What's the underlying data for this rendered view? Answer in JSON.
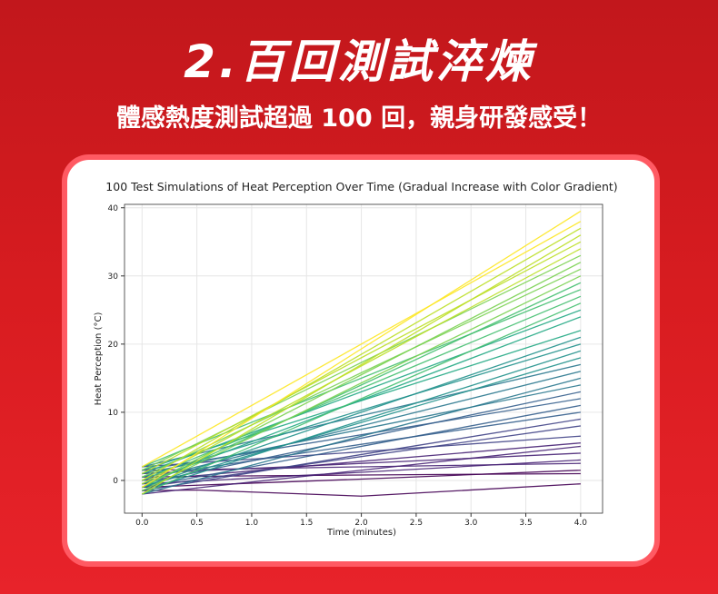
{
  "header": {
    "title": "2.百回測試淬煉",
    "subtitle": "體感熱度測試超過 100 回，親身研發感受！"
  },
  "chart_data": {
    "type": "line",
    "title": "100 Test Simulations of Heat Perception Over Time (Gradual Increase with Color Gradient)",
    "xlabel": "Time (minutes)",
    "ylabel": "Heat Perception (°C)",
    "x": [
      0,
      0.5,
      2,
      4
    ],
    "xlim": [
      -0.16,
      4.2
    ],
    "ylim": [
      -4.8,
      40.5
    ],
    "xticks": [
      {
        "value": 0,
        "label": "0.0"
      },
      {
        "value": 0.5,
        "label": "0.5"
      },
      {
        "value": 1,
        "label": "1.0"
      },
      {
        "value": 1.5,
        "label": "1.5"
      },
      {
        "value": 2,
        "label": "2.0"
      },
      {
        "value": 2.5,
        "label": "2.5"
      },
      {
        "value": 3,
        "label": "3.0"
      },
      {
        "value": 3.5,
        "label": "3.5"
      },
      {
        "value": 4,
        "label": "4.0"
      }
    ],
    "yticks": [
      0,
      10,
      20,
      30,
      40
    ],
    "grid": true,
    "series": [
      {
        "color": "#440154",
        "values": [
          -1.5,
          -1.4,
          -2.3,
          -0.5
        ]
      },
      {
        "color": "#440154",
        "values": [
          0.5,
          0.6,
          0.8,
          1
        ]
      },
      {
        "color": "#440154",
        "values": [
          -1,
          -0.7,
          0.2,
          1.5
        ]
      },
      {
        "color": "#482475",
        "values": [
          1.5,
          1.6,
          2,
          2.5
        ]
      },
      {
        "color": "#482475",
        "values": [
          -0.5,
          -0.1,
          1.2,
          3
        ]
      },
      {
        "color": "#482475",
        "values": [
          1,
          1.4,
          2.5,
          4
        ]
      },
      {
        "color": "#482475",
        "values": [
          -2,
          -1.1,
          1.5,
          5
        ]
      },
      {
        "color": "#482475",
        "values": [
          0,
          0.7,
          2.8,
          5.5
        ]
      },
      {
        "color": "#414487",
        "values": [
          2,
          2.6,
          4.2,
          6.5
        ]
      },
      {
        "color": "#414487",
        "values": [
          -1,
          0.1,
          3.5,
          8
        ]
      },
      {
        "color": "#414487",
        "values": [
          -1.5,
          -0.2,
          3.8,
          9
        ]
      },
      {
        "color": "#355f8d",
        "values": [
          0.5,
          1.7,
          5.3,
          10
        ]
      },
      {
        "color": "#355f8d",
        "values": [
          -1,
          0.5,
          5,
          11
        ]
      },
      {
        "color": "#355f8d",
        "values": [
          1.5,
          2.8,
          6.7,
          12
        ]
      },
      {
        "color": "#355f8d",
        "values": [
          -0.5,
          1.2,
          6.2,
          13
        ]
      },
      {
        "color": "#2a788e",
        "values": [
          1,
          2.6,
          7.5,
          14
        ]
      },
      {
        "color": "#2a788e",
        "values": [
          -2,
          0.1,
          6.5,
          15
        ]
      },
      {
        "color": "#2a788e",
        "values": [
          0,
          2,
          8,
          16
        ]
      },
      {
        "color": "#2a788e",
        "values": [
          2,
          3.9,
          9.5,
          17
        ]
      },
      {
        "color": "#21918c",
        "values": [
          -1,
          1.4,
          8.5,
          18
        ]
      },
      {
        "color": "#21918c",
        "values": [
          -1.5,
          1,
          8.8,
          19
        ]
      },
      {
        "color": "#21918c",
        "values": [
          0.5,
          2.9,
          10.3,
          20
        ]
      },
      {
        "color": "#21918c",
        "values": [
          -1,
          1.8,
          10,
          21
        ]
      },
      {
        "color": "#22a884",
        "values": [
          1.5,
          4.1,
          11.7,
          22
        ]
      },
      {
        "color": "#22a884",
        "values": [
          -0.5,
          2.6,
          11.8,
          24
        ]
      },
      {
        "color": "#22a884",
        "values": [
          1,
          4,
          13,
          25
        ]
      },
      {
        "color": "#44bf70",
        "values": [
          -2,
          1.5,
          12,
          26
        ]
      },
      {
        "color": "#44bf70",
        "values": [
          0,
          3.4,
          13.5,
          27
        ]
      },
      {
        "color": "#44bf70",
        "values": [
          2,
          5.3,
          15,
          28
        ]
      },
      {
        "color": "#44bf70",
        "values": [
          -1,
          2.8,
          14,
          29
        ]
      },
      {
        "color": "#7ad151",
        "values": [
          -1.5,
          2.4,
          14.3,
          30
        ]
      },
      {
        "color": "#7ad151",
        "values": [
          0.5,
          4.3,
          15.8,
          31
        ]
      },
      {
        "color": "#7ad151",
        "values": [
          -1,
          3.1,
          15.5,
          32
        ]
      },
      {
        "color": "#7ad151",
        "values": [
          1.5,
          5.4,
          17.3,
          33
        ]
      },
      {
        "color": "#bddf26",
        "values": [
          -0.5,
          3.8,
          16.8,
          34
        ]
      },
      {
        "color": "#bddf26",
        "values": [
          1,
          5.2,
          18,
          35
        ]
      },
      {
        "color": "#bddf26",
        "values": [
          -2,
          2.8,
          17,
          36
        ]
      },
      {
        "color": "#bddf26",
        "values": [
          0,
          4.6,
          18.5,
          37
        ]
      },
      {
        "color": "#fde725",
        "values": [
          2,
          6.5,
          20,
          38
        ]
      },
      {
        "color": "#fde725",
        "values": [
          -1,
          4,
          19.3,
          39.5
        ]
      }
    ]
  }
}
